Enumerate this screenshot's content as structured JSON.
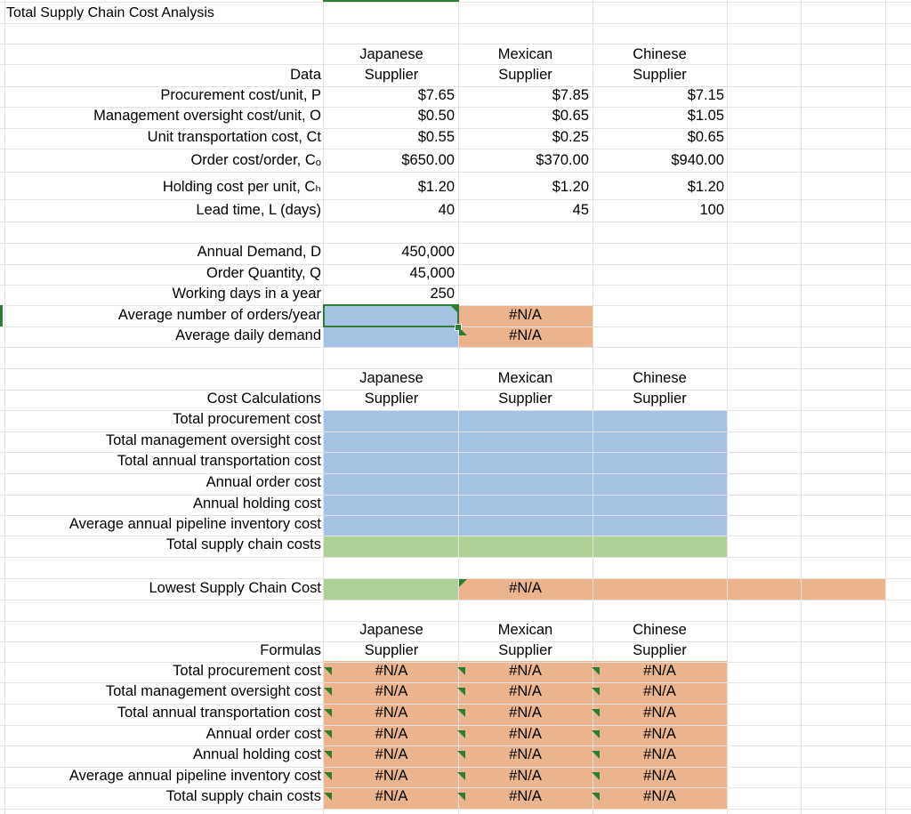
{
  "sheet": {
    "title": "Total Supply Chain Cost Analysis"
  },
  "suppliers": [
    {
      "line1": "Japanese",
      "line2": "Supplier"
    },
    {
      "line1": "Mexican",
      "line2": "Supplier"
    },
    {
      "line1": "Chinese",
      "line2": "Supplier"
    }
  ],
  "data_section": {
    "header": "Data",
    "rows": [
      {
        "label": "Procurement cost/unit, P",
        "values": [
          "$7.65",
          "$7.85",
          "$7.15"
        ]
      },
      {
        "label": "Management oversight cost/unit, O",
        "values": [
          "$0.50",
          "$0.65",
          "$1.05"
        ]
      },
      {
        "label": "Unit transportation cost, Ct",
        "values": [
          "$0.55",
          "$0.25",
          "$0.65"
        ]
      },
      {
        "label": "Order cost/order, Cₒ",
        "values": [
          "$650.00",
          "$370.00",
          "$940.00"
        ]
      },
      {
        "label": "Holding cost per unit, Cₕ",
        "values": [
          "$1.20",
          "$1.20",
          "$1.20"
        ]
      },
      {
        "label": "Lead time, L (days)",
        "values": [
          "40",
          "45",
          "100"
        ]
      }
    ]
  },
  "demand": {
    "rows": [
      {
        "label": "Annual Demand, D",
        "value": "450,000"
      },
      {
        "label": "Order Quantity, Q",
        "value": "45,000"
      },
      {
        "label": "Working days in a year",
        "value": "250"
      },
      {
        "label": "Average number of orders/year",
        "value": "",
        "value2": "#N/A"
      },
      {
        "label": "Average daily demand",
        "value": "",
        "value2": "#N/A"
      }
    ]
  },
  "cost_section": {
    "header": "Cost Calculations",
    "rows": [
      "Total procurement cost",
      "Total management oversight cost",
      "Total annual transportation cost",
      "Annual order cost",
      "Annual holding cost",
      "Average annual pipeline inventory cost",
      "Total supply chain costs"
    ]
  },
  "lowest": {
    "label": "Lowest Supply Chain Cost",
    "value": "#N/A"
  },
  "formulas_section": {
    "header": "Formulas",
    "rows": [
      {
        "label": "Total procurement cost",
        "values": [
          "#N/A",
          "#N/A",
          "#N/A"
        ]
      },
      {
        "label": "Total management oversight cost",
        "values": [
          "#N/A",
          "#N/A",
          "#N/A"
        ]
      },
      {
        "label": "Total annual transportation cost",
        "values": [
          "#N/A",
          "#N/A",
          "#N/A"
        ]
      },
      {
        "label": "Annual order cost",
        "values": [
          "#N/A",
          "#N/A",
          "#N/A"
        ]
      },
      {
        "label": "Annual holding cost",
        "values": [
          "#N/A",
          "#N/A",
          "#N/A"
        ]
      },
      {
        "label": "Average annual pipeline inventory cost",
        "values": [
          "#N/A",
          "#N/A",
          "#N/A"
        ]
      },
      {
        "label": "Total supply chain costs",
        "values": [
          "#N/A",
          "#N/A",
          "#N/A"
        ]
      }
    ]
  },
  "colors": {
    "blue": "#a4c2e4",
    "green": "#b0d196",
    "orange": "#ebb48c",
    "gridline": "#e2e2e2",
    "selection": "#2f7d32"
  }
}
